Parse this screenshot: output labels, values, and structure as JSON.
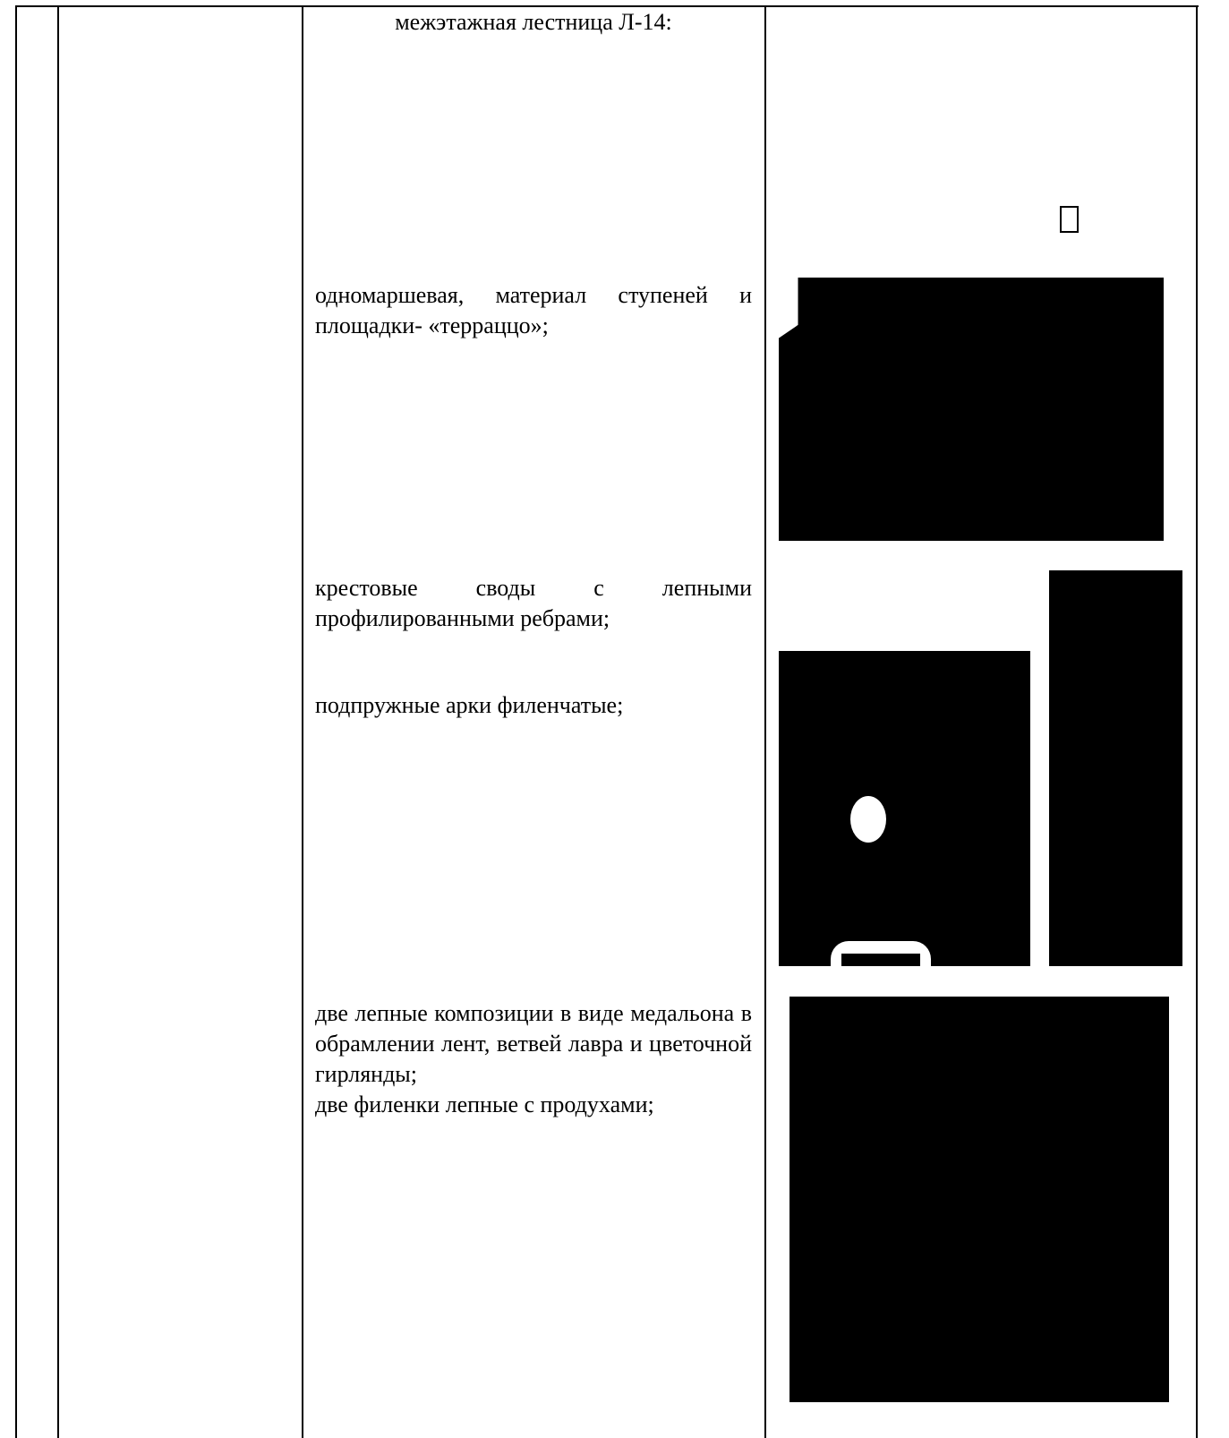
{
  "description": {
    "heading": "межэтажная лестница Л-14:",
    "items": [
      "одномаршевая, материал ступеней и площадки- «терраццо»;",
      "крестовые своды с лепными профилированными ребрами;",
      "подпружные арки филенчатые;",
      "две лепные композиции в виде медальона в обрамлении лент, ветвей лавра и цветочной гирлянды;",
      "две филенки лепные с продухами;"
    ]
  }
}
